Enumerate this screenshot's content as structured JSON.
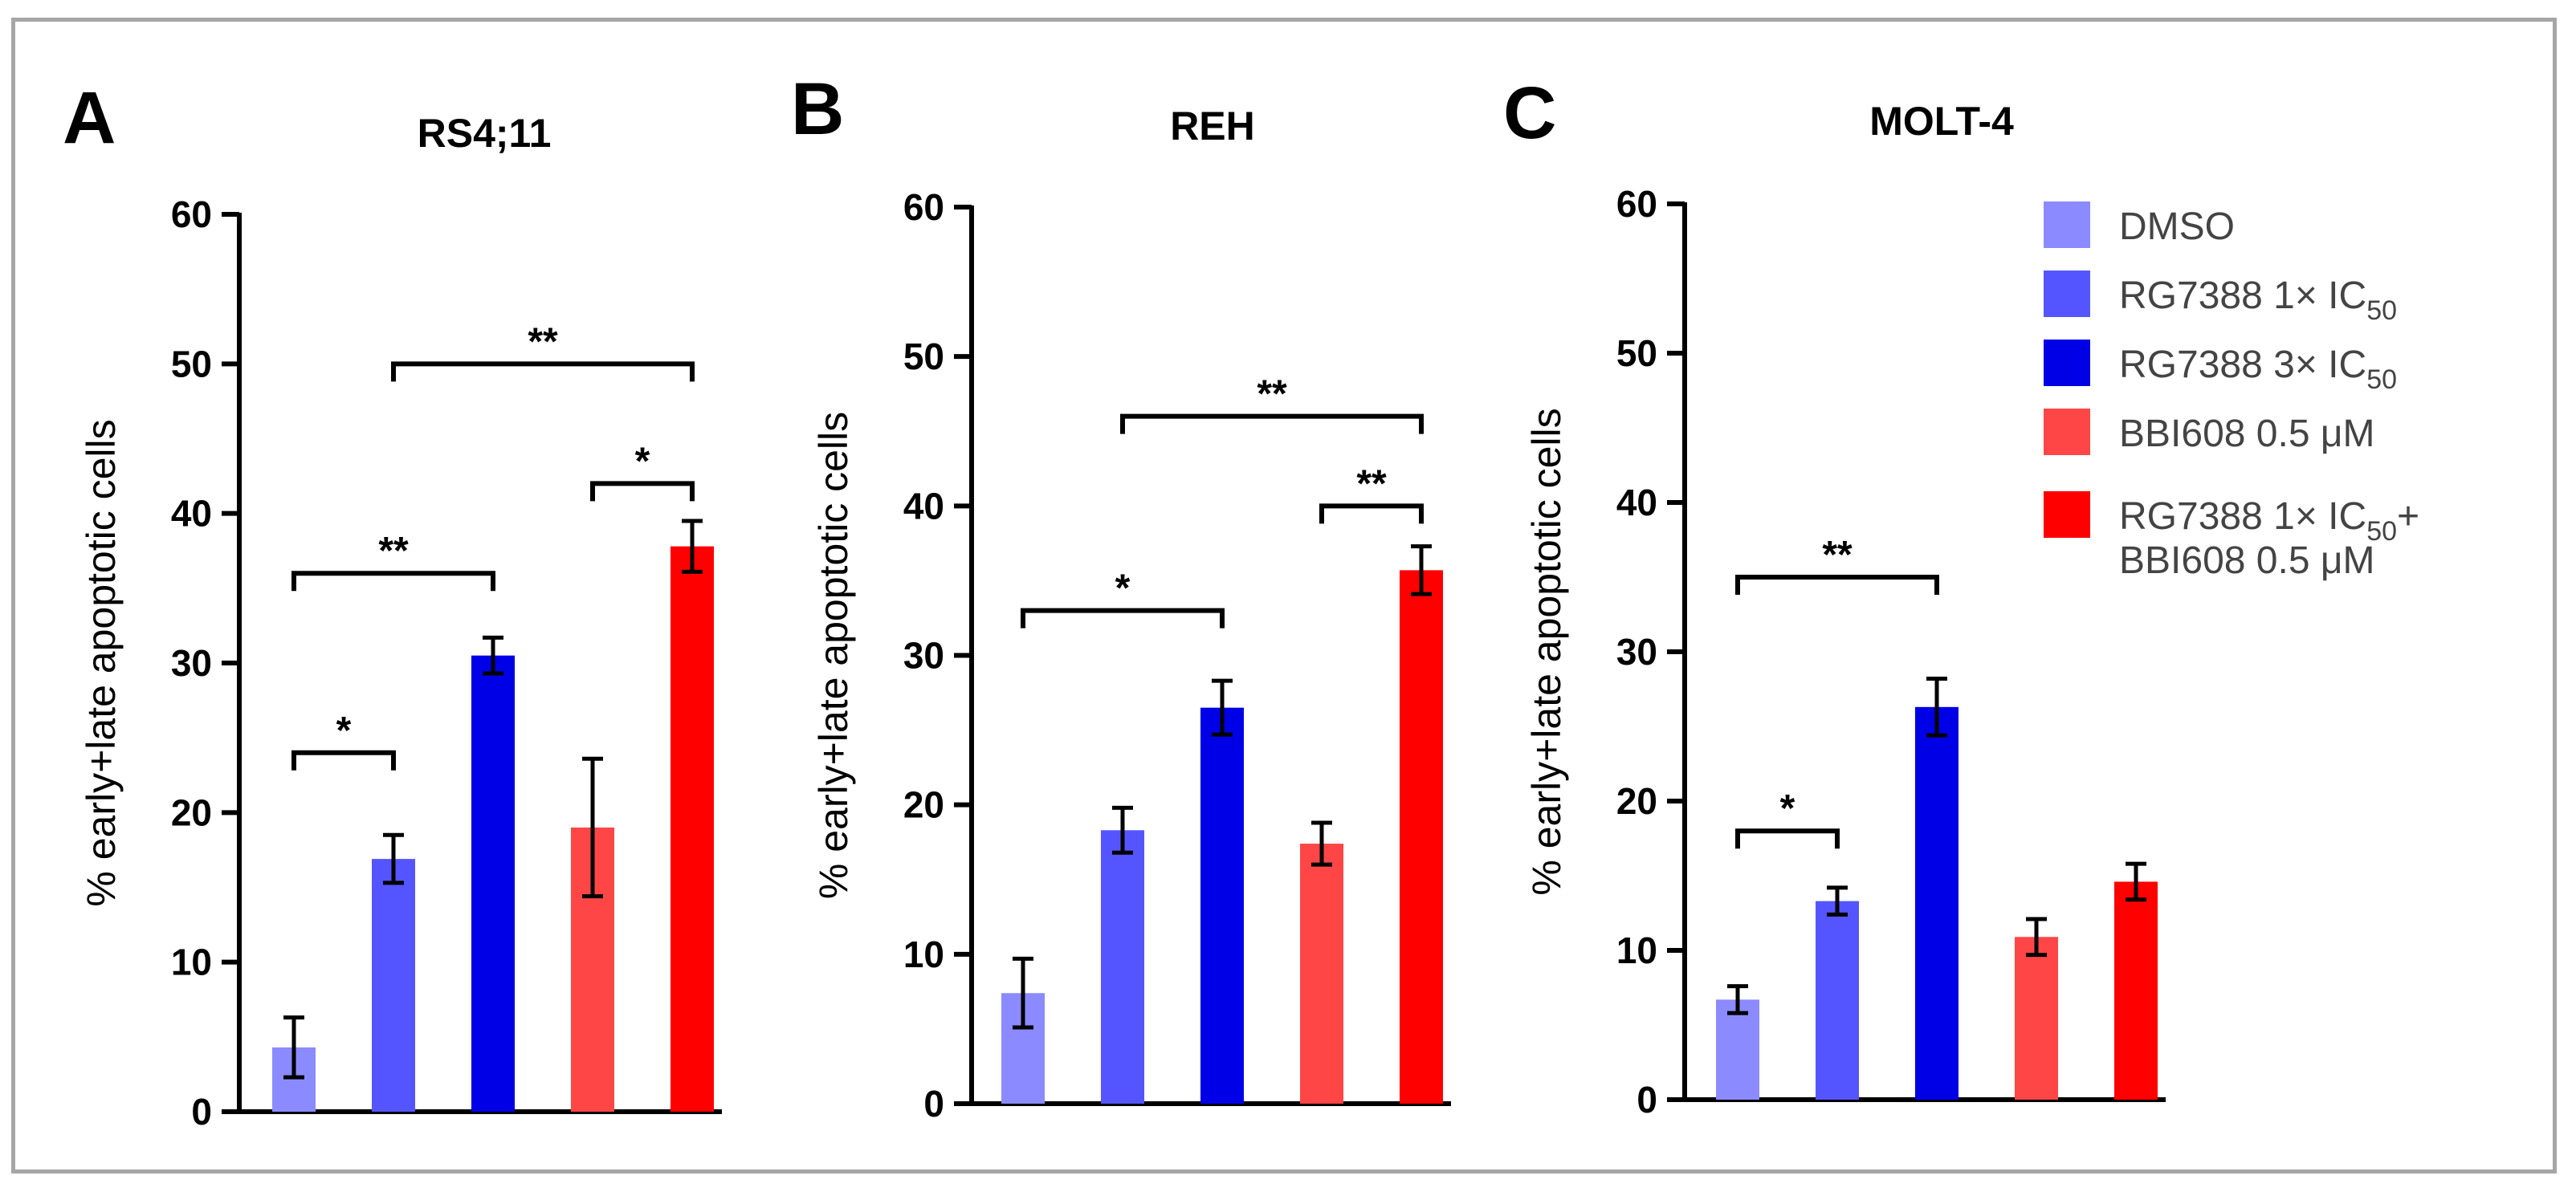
{
  "chart_data": [
    {
      "type": "bar",
      "panel": "A",
      "title": "RS4;11",
      "ylabel": "% early+late apoptotic cells",
      "ylim": [
        0,
        60
      ],
      "yticks": [
        "0",
        "10",
        "20",
        "30",
        "40",
        "50",
        "60"
      ],
      "series": [
        {
          "name": "DMSO",
          "value": 4.3,
          "error": 2.0
        },
        {
          "name": "RG7388 1× IC50",
          "value": 16.9,
          "error": 1.6
        },
        {
          "name": "RG7388 3× IC50",
          "value": 30.5,
          "error": 1.2
        },
        {
          "name": "BBI608 0.5 μM",
          "value": 19.0,
          "error": 4.6
        },
        {
          "name": "RG7388 1× IC50+ BBI608 0.5 μM",
          "value": 37.8,
          "error": 1.7
        }
      ],
      "significance": [
        {
          "from": 0,
          "to": 1,
          "label": "*",
          "level": 24
        },
        {
          "from": 0,
          "to": 2,
          "label": "**",
          "level": 36
        },
        {
          "from": 3,
          "to": 4,
          "label": "*",
          "level": 42
        },
        {
          "from": 1,
          "to": 4,
          "label": "**",
          "level": 50
        }
      ]
    },
    {
      "type": "bar",
      "panel": "B",
      "title": "REH",
      "ylabel": "% early+late apoptotic cells",
      "ylim": [
        0,
        60
      ],
      "yticks": [
        "0",
        "10",
        "20",
        "30",
        "40",
        "50",
        "60"
      ],
      "series": [
        {
          "name": "DMSO",
          "value": 7.4,
          "error": 2.3
        },
        {
          "name": "RG7388 1× IC50",
          "value": 18.3,
          "error": 1.5
        },
        {
          "name": "RG7388 3× IC50",
          "value": 26.5,
          "error": 1.8
        },
        {
          "name": "BBI608 0.5 μM",
          "value": 17.4,
          "error": 1.4
        },
        {
          "name": "RG7388 1× IC50+ BBI608 0.5 μM",
          "value": 35.7,
          "error": 1.6
        }
      ],
      "significance": [
        {
          "from": 0,
          "to": 2,
          "label": "*",
          "level": 33
        },
        {
          "from": 3,
          "to": 4,
          "label": "**",
          "level": 40
        },
        {
          "from": 1,
          "to": 4,
          "label": "**",
          "level": 46
        }
      ]
    },
    {
      "type": "bar",
      "panel": "C",
      "title": "MOLT-4",
      "ylabel": "% early+late apoptotic cells",
      "ylim": [
        0,
        60
      ],
      "yticks": [
        "0",
        "10",
        "20",
        "30",
        "40",
        "50",
        "60"
      ],
      "series": [
        {
          "name": "DMSO",
          "value": 6.7,
          "error": 0.9
        },
        {
          "name": "RG7388 1× IC50",
          "value": 13.3,
          "error": 0.9
        },
        {
          "name": "RG7388 3× IC50",
          "value": 26.3,
          "error": 1.9
        },
        {
          "name": "BBI608 0.5 μM",
          "value": 10.9,
          "error": 1.2
        },
        {
          "name": "RG7388 1× IC50+ BBI608 0.5 μM",
          "value": 14.6,
          "error": 1.2
        }
      ],
      "significance": [
        {
          "from": 0,
          "to": 1,
          "label": "*",
          "level": 18
        },
        {
          "from": 0,
          "to": 2,
          "label": "**",
          "level": 35
        }
      ]
    }
  ],
  "legend": [
    {
      "text": "DMSO",
      "sub": "",
      "suffix": "",
      "text2": "",
      "color": "#8b8bff"
    },
    {
      "text": "RG7388 1× IC",
      "sub": "50",
      "suffix": "",
      "text2": "",
      "color": "#5555ff"
    },
    {
      "text": "RG7388 3× IC",
      "sub": "50",
      "suffix": "",
      "text2": "",
      "color": "#0000e6"
    },
    {
      "text": "BBI608 0.5 μM",
      "sub": "",
      "suffix": "",
      "text2": "",
      "color": "#ff4646"
    },
    {
      "text": "RG7388 1× IC",
      "sub": "50",
      "suffix": "+",
      "text2": "BBI608 0.5 μM",
      "color": "#ff0000"
    }
  ],
  "colors": [
    "#8b8bff",
    "#5555ff",
    "#0000e6",
    "#ff4646",
    "#ff0000"
  ]
}
